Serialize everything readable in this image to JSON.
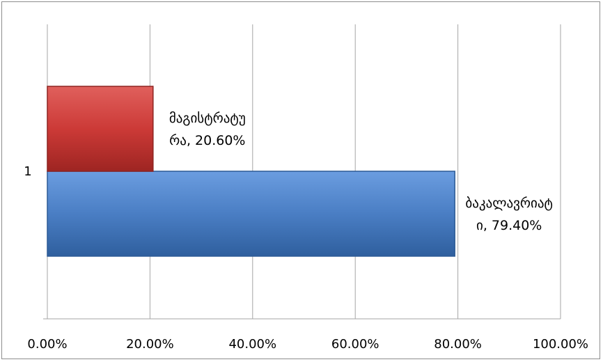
{
  "chart_data": {
    "type": "bar",
    "orientation": "horizontal",
    "categories": [
      "1"
    ],
    "series": [
      {
        "name": "ბაკალავრიატი",
        "values": [
          0.794
        ],
        "color": "#4a7ec4",
        "label_lines": [
          "ბაკალავრიატ",
          "ი, 79.40%"
        ]
      },
      {
        "name": "მაგისტრატურა",
        "values": [
          0.206
        ],
        "color": "#d03b3b",
        "label_lines": [
          "მაგისტრატუ",
          "რა, 20.60%"
        ]
      }
    ],
    "x_ticks": [
      "0.00%",
      "20.00%",
      "40.00%",
      "60.00%",
      "80.00%",
      "100.00%"
    ],
    "xlim": [
      0,
      1
    ],
    "grid": true,
    "legend": "none"
  }
}
